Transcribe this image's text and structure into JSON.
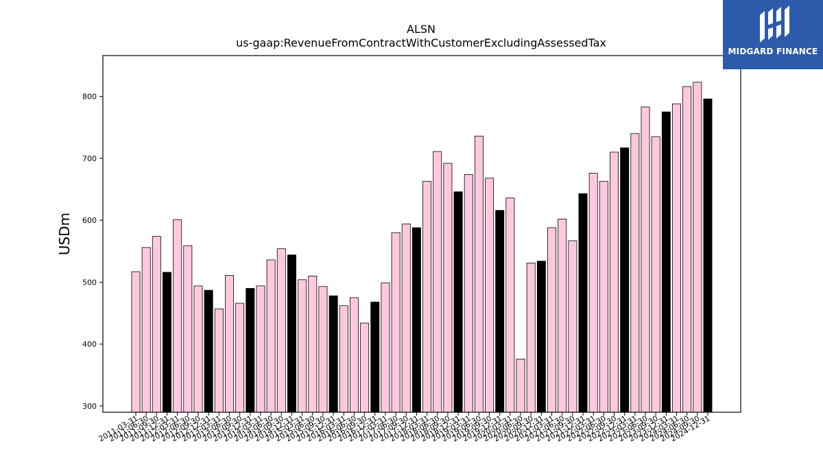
{
  "chart_data": {
    "type": "bar",
    "title": "ALSN",
    "subtitle": "us-gaap:RevenueFromContractWithCustomerExcludingAssessedTax",
    "xlabel": "",
    "ylabel": "USDm",
    "ylim": [
      290,
      866
    ],
    "yticks": [
      300,
      400,
      500,
      600,
      700,
      800
    ],
    "grid": false,
    "colors": {
      "quarter": "#ffc8de",
      "annual": "#000000",
      "edge": "#000000"
    },
    "categories": [
      "2011-03-31",
      "2011-06-30",
      "2011-09-30",
      "2011-12-31",
      "2012-03-31",
      "2012-06-30",
      "2012-09-30",
      "2012-12-31",
      "2013-03-31",
      "2013-06-30",
      "2013-09-30",
      "2013-12-31",
      "2014-03-31",
      "2014-06-30",
      "2014-09-30",
      "2014-12-31",
      "2015-03-31",
      "2015-06-30",
      "2015-09-30",
      "2015-12-31",
      "2016-03-31",
      "2016-06-30",
      "2016-09-30",
      "2016-12-31",
      "2017-03-31",
      "2017-06-30",
      "2017-09-30",
      "2017-12-31",
      "2018-03-31",
      "2018-06-30",
      "2018-09-30",
      "2018-12-31",
      "2019-03-31",
      "2019-06-30",
      "2019-09-30",
      "2019-12-31",
      "2020-03-31",
      "2020-06-30",
      "2020-09-30",
      "2020-12-31",
      "2021-03-31",
      "2021-06-30",
      "2021-09-30",
      "2021-12-31",
      "2022-03-31",
      "2022-06-30",
      "2022-09-30",
      "2022-12-31",
      "2023-03-31",
      "2023-06-30",
      "2023-09-30",
      "2023-12-31",
      "2024-03-31",
      "2024-06-30",
      "2024-09-30",
      "2024-12-31"
    ],
    "values": [
      517,
      556,
      574,
      516,
      601,
      559,
      494,
      487,
      457,
      511,
      466,
      490,
      494,
      536,
      554,
      544,
      504,
      510,
      493,
      478,
      462,
      475,
      434,
      468,
      499,
      580,
      594,
      588,
      663,
      711,
      692,
      646,
      674,
      736,
      668,
      616,
      636,
      376,
      531,
      534,
      588,
      602,
      567,
      643,
      676,
      663,
      710,
      717,
      740,
      783,
      735,
      775,
      788,
      816,
      823,
      796
    ],
    "annual": [
      false,
      false,
      false,
      true,
      false,
      false,
      false,
      true,
      false,
      false,
      false,
      true,
      false,
      false,
      false,
      true,
      false,
      false,
      false,
      true,
      false,
      false,
      false,
      true,
      false,
      false,
      false,
      true,
      false,
      false,
      false,
      true,
      false,
      false,
      false,
      true,
      false,
      false,
      false,
      true,
      false,
      false,
      false,
      true,
      false,
      false,
      false,
      true,
      false,
      false,
      false,
      true,
      false,
      false,
      false,
      true
    ]
  },
  "logo": {
    "text": "MIDGARD FINANCE",
    "icon": "midgard-logo-icon"
  }
}
